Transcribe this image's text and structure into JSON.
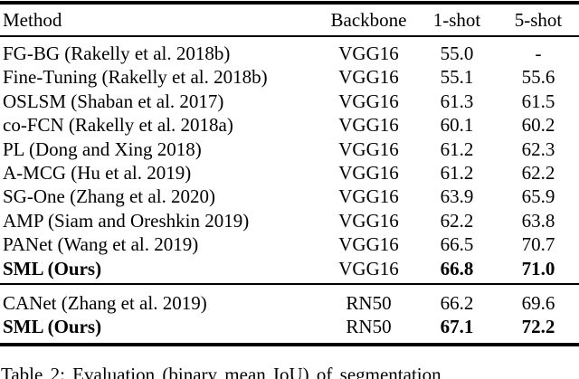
{
  "table": {
    "header": {
      "method": "Method",
      "backbone": "Backbone",
      "one_shot": "1-shot",
      "five_shot": "5-shot"
    },
    "sections": [
      {
        "rows": [
          {
            "method": "FG-BG (Rakelly et al. 2018b)",
            "backbone": "VGG16",
            "one_shot": "55.0",
            "five_shot": "-"
          },
          {
            "method": "Fine-Tuning (Rakelly et al. 2018b)",
            "backbone": "VGG16",
            "one_shot": "55.1",
            "five_shot": "55.6"
          },
          {
            "method": "OSLSM (Shaban et al. 2017)",
            "backbone": "VGG16",
            "one_shot": "61.3",
            "five_shot": "61.5"
          },
          {
            "method": "co-FCN (Rakelly et al. 2018a)",
            "backbone": "VGG16",
            "one_shot": "60.1",
            "five_shot": "60.2"
          },
          {
            "method": "PL (Dong and Xing 2018)",
            "backbone": "VGG16",
            "one_shot": "61.2",
            "five_shot": "62.3"
          },
          {
            "method": "A-MCG (Hu et al. 2019)",
            "backbone": "VGG16",
            "one_shot": "61.2",
            "five_shot": "62.2"
          },
          {
            "method": "SG-One (Zhang et al. 2020)",
            "backbone": "VGG16",
            "one_shot": "63.9",
            "five_shot": "65.9"
          },
          {
            "method": "AMP (Siam and Oreshkin 2019)",
            "backbone": "VGG16",
            "one_shot": "62.2",
            "five_shot": "63.8"
          },
          {
            "method": "PANet (Wang et al. 2019)",
            "backbone": "VGG16",
            "one_shot": "66.5",
            "five_shot": "70.7"
          },
          {
            "method": "SML (Ours)",
            "backbone": "VGG16",
            "one_shot": "66.8",
            "five_shot": "71.0",
            "bold": true
          }
        ]
      },
      {
        "rows": [
          {
            "method": "CANet (Zhang et al. 2019)",
            "backbone": "RN50",
            "one_shot": "66.2",
            "five_shot": "69.6"
          },
          {
            "method": "SML (Ours)",
            "backbone": "RN50",
            "one_shot": "67.1",
            "five_shot": "72.2",
            "bold": true
          }
        ]
      }
    ]
  },
  "caption": "Table 2: Evaluation (binary mean IoU) of segmentation"
}
